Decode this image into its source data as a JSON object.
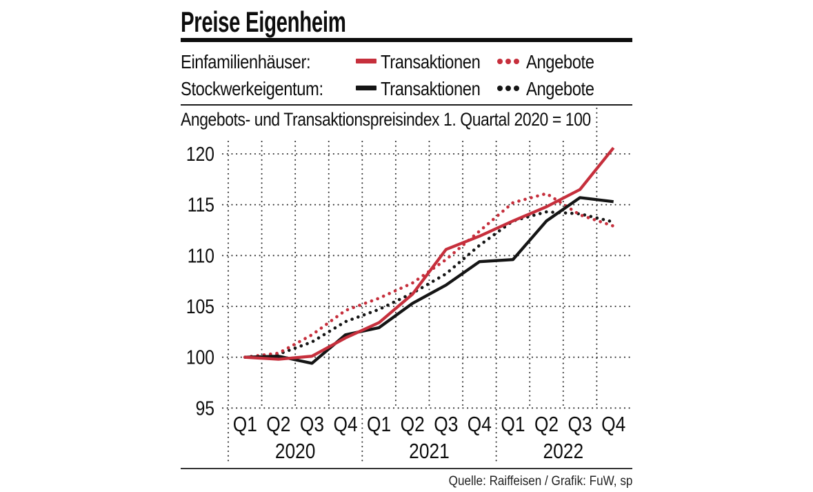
{
  "title": "Preise Eigenheim",
  "legend": {
    "rows": [
      {
        "label": "Einfamilienhäuser:",
        "transactions_label": "Transaktionen",
        "offers_label": "Angebote",
        "color": "#c62f3c"
      },
      {
        "label": "Stockwerkeigentum:",
        "transactions_label": "Transaktionen",
        "offers_label": "Angebote",
        "color": "#151515"
      }
    ]
  },
  "subtitle": "Angebots- und Transaktionspreisindex 1. Quartal 2020 = 100",
  "source": "Quelle: Raiffeisen / Grafik: FuW, sp",
  "chart_data": {
    "type": "line",
    "x_quarter_labels": [
      "Q1",
      "Q2",
      "Q3",
      "Q4",
      "Q1",
      "Q2",
      "Q3",
      "Q4",
      "Q1",
      "Q2",
      "Q3",
      "Q4"
    ],
    "year_labels": [
      "2020",
      "2021",
      "2022"
    ],
    "y_ticks": [
      95,
      100,
      105,
      110,
      115,
      120
    ],
    "ylim": [
      95,
      120
    ],
    "grid": "dotted",
    "legend_position": "top",
    "series": [
      {
        "name": "Einfamilienhäuser Transaktionen",
        "color": "#c62f3c",
        "style": "solid",
        "values": [
          100.0,
          99.8,
          100.1,
          101.9,
          103.4,
          106.2,
          110.6,
          111.9,
          113.4,
          114.8,
          116.5,
          120.6
        ]
      },
      {
        "name": "Einfamilienhäuser Angebote",
        "color": "#c62f3c",
        "style": "dotted",
        "values": [
          100.0,
          100.4,
          102.2,
          104.6,
          105.8,
          107.3,
          109.6,
          112.4,
          115.2,
          116.1,
          114.0,
          112.9
        ]
      },
      {
        "name": "Stockwerkeigentum Transaktionen",
        "color": "#151515",
        "style": "solid",
        "values": [
          100.0,
          100.1,
          99.4,
          102.2,
          102.9,
          105.3,
          107.1,
          109.4,
          109.6,
          113.4,
          115.7,
          115.3
        ]
      },
      {
        "name": "Stockwerkeigentum Angebote",
        "color": "#151515",
        "style": "dotted",
        "values": [
          100.0,
          100.3,
          101.5,
          103.5,
          104.7,
          106.3,
          108.2,
          111.0,
          113.4,
          114.3,
          114.1,
          113.3
        ]
      }
    ]
  }
}
